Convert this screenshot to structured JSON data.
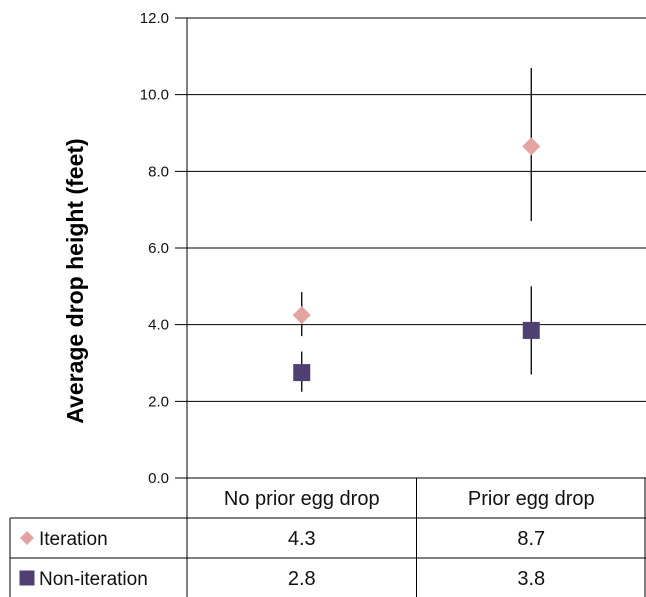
{
  "chart_data": {
    "type": "scatter",
    "title": "",
    "ylabel": "Average drop height (feet)",
    "xlabel": "",
    "ylim": [
      0,
      12
    ],
    "y_ticks": [
      "0.0",
      "2.0",
      "4.0",
      "6.0",
      "8.0",
      "10.0",
      "12.0"
    ],
    "categories": [
      "No prior egg drop",
      "Prior egg drop"
    ],
    "series": [
      {
        "name": "Iteration",
        "marker": "diamond",
        "color": "#e3a3a0",
        "values": [
          4.25,
          8.65
        ],
        "error_low": [
          3.7,
          6.7
        ],
        "error_high": [
          4.85,
          10.7
        ],
        "table_labels": [
          "4.3",
          "8.7"
        ]
      },
      {
        "name": "Non-iteration",
        "marker": "square",
        "color": "#4f3f73",
        "values": [
          2.75,
          3.85
        ],
        "error_low": [
          2.25,
          2.7
        ],
        "error_high": [
          3.3,
          5.0
        ],
        "table_labels": [
          "2.8",
          "3.8"
        ]
      }
    ],
    "legend": "data-table-left",
    "grid": true
  }
}
